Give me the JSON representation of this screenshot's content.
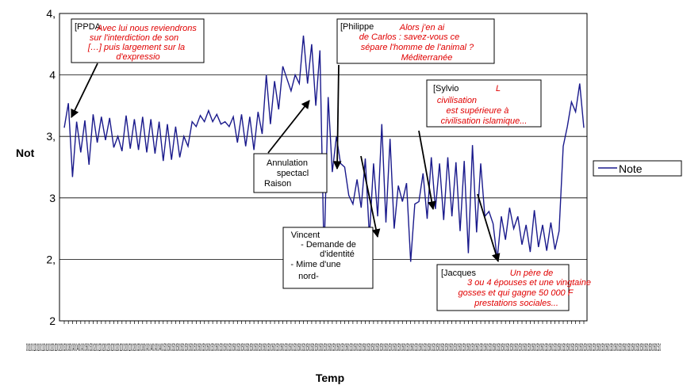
{
  "chart_data": {
    "type": "line",
    "title": "",
    "xlabel": "Temp",
    "ylabel": "Not",
    "ylim": [
      2,
      4.5
    ],
    "y_ticks": [
      {
        "value": 4.5,
        "label": "4,"
      },
      {
        "value": 4.0,
        "label": "4"
      },
      {
        "value": 3.5,
        "label": "3,"
      },
      {
        "value": 3.0,
        "label": "3"
      },
      {
        "value": 2.5,
        "label": "2,"
      },
      {
        "value": 2.0,
        "label": "2"
      }
    ],
    "x_tick_text": "00:0100:0100:0100:0100:0100:0200:0200:0200:0300:0300:0400:0400:0400:0500:0500:0200:0200:0200:0200:0200:0200:0200:0200:0200:0200:0300:0300:0400:0400:0400:0400:0500:0500:0500:0500:0500:0500:0500:0500:0500:0500:0500:0500:0500:0500:0500:0500:0500:0500:0500:0500:0500:0500:0500:0500:0500:0500:0500:0500:0500:0500:0500:0500:0500:0500:0500:0500:0500:0500:0500:0500:0500:0500:0500:0500:0500:0500:0500:0500:0500:0500:0500:0500:0500:0500:0500:0500:0500:0500:0500:0500:0500:0500:0500:0500:0500:0500:0500:0500:0500:0500:0500:0500:0500:0500:0500:0500:0500:0500:0500:0500:0500:0500:0500:0500:0500:0500:0500:0500:0500:0500:0500:0500:0500:0500:0500:0500:0500:0500:0500:0500:0500:0500:0500:0500:0500:0500:0500:0500:0500:0500:0500:0500:0500:0500:53:0",
    "grid": true,
    "legend": {
      "placement": "right",
      "entries": [
        "Note"
      ]
    },
    "series": [
      {
        "name": "Note",
        "color": "#1a1a8c",
        "values": [
          3.57,
          3.77,
          3.17,
          3.62,
          3.37,
          3.63,
          3.27,
          3.68,
          3.45,
          3.66,
          3.47,
          3.65,
          3.41,
          3.5,
          3.38,
          3.67,
          3.4,
          3.64,
          3.39,
          3.66,
          3.37,
          3.64,
          3.36,
          3.62,
          3.3,
          3.6,
          3.31,
          3.58,
          3.33,
          3.5,
          3.42,
          3.62,
          3.58,
          3.67,
          3.62,
          3.71,
          3.62,
          3.68,
          3.6,
          3.62,
          3.58,
          3.66,
          3.45,
          3.68,
          3.42,
          3.66,
          3.39,
          3.7,
          3.52,
          4.0,
          3.6,
          3.95,
          3.72,
          4.07,
          3.97,
          3.87,
          4.0,
          3.93,
          4.32,
          3.93,
          4.25,
          3.75,
          4.2,
          2.52,
          3.82,
          3.21,
          3.5,
          3.28,
          3.25,
          3.02,
          2.95,
          3.15,
          2.92,
          3.32,
          2.68,
          3.28,
          2.85,
          3.6,
          2.8,
          3.48,
          2.75,
          3.1,
          2.97,
          3.12,
          2.48,
          2.95,
          2.97,
          3.2,
          2.83,
          3.33,
          2.91,
          3.28,
          2.82,
          3.33,
          2.85,
          3.29,
          2.73,
          3.3,
          2.55,
          3.43,
          2.72,
          3.28,
          2.85,
          2.89,
          2.79,
          2.5,
          2.85,
          2.66,
          2.92,
          2.75,
          2.85,
          2.62,
          2.78,
          2.56,
          2.9,
          2.6,
          2.78,
          2.57,
          2.8,
          2.58,
          2.73,
          3.42,
          3.58,
          3.78,
          3.7,
          3.93,
          3.57
        ]
      }
    ],
    "annotations": [
      {
        "name": "ppda",
        "speaker": "[PPDA",
        "quote": [
          "Avec lui nous reviendrons",
          "sur l'interdiction de son",
          "[…] puis largement sur la",
          "d'expressio"
        ]
      },
      {
        "name": "philippe",
        "speaker": "[Philippe",
        "quote": [
          "Alors j'en ai",
          "de Carlos : savez-vous ce",
          "sépare l'homme de l'animal ?",
          "Méditerranée"
        ]
      },
      {
        "name": "sylvio",
        "speaker": "[Sylvio",
        "quote": [
          "L",
          "civilisation",
          "est supérieure à",
          "civilisation islamique..."
        ]
      },
      {
        "name": "annulation",
        "lines": [
          "Annulation",
          "spectacl",
          "Raison"
        ]
      },
      {
        "name": "vincent",
        "lines": [
          "Vincent",
          "- Demande de",
          "d'identité",
          "- Mime d'une",
          "nord-"
        ]
      },
      {
        "name": "jacques",
        "speaker": "[Jacques",
        "quote": [
          "Un père de",
          "3 ou 4 épouses et une vingtaine",
          "gosses et qui gagne 50 000 F",
          "prestations sociales..."
        ]
      }
    ]
  }
}
